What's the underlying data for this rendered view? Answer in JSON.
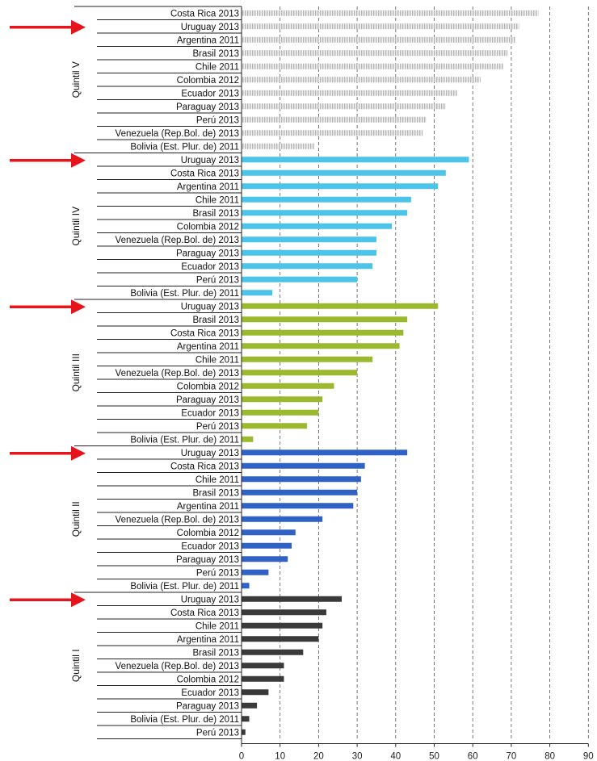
{
  "chart_data": {
    "type": "bar",
    "orientation": "horizontal",
    "xlim": [
      0,
      90
    ],
    "xticks": [
      "0",
      "10",
      "20",
      "30",
      "40",
      "50",
      "60",
      "70",
      "80",
      "90"
    ],
    "grid": "vertical dashed",
    "colors": {
      "Quintil V": "#c8c8c8",
      "Quintil IV": "#4cc3e8",
      "Quintil III": "#9ab92e",
      "Quintil II": "#2f62c4",
      "Quintil I": "#3a3a3a",
      "arrow": "#e8141b"
    },
    "groups": [
      {
        "name": "Quintil V",
        "categories": [
          "Costa Rica 2013",
          "Uruguay 2013",
          "Argentina 2011",
          "Brasil 2013",
          "Chile 2011",
          "Colombia 2012",
          "Ecuador 2013",
          "Paraguay 2013",
          "Perú 2013",
          "Venezuela (Rep.Bol. de) 2013",
          "Bolivia (Est. Plur. de) 2011"
        ],
        "values": [
          77,
          72,
          71,
          69,
          68,
          62,
          56,
          53,
          48,
          47,
          19
        ]
      },
      {
        "name": "Quintil IV",
        "categories": [
          "Uruguay 2013",
          "Costa Rica 2013",
          "Argentina 2011",
          "Chile 2011",
          "Brasil 2013",
          "Colombia 2012",
          "Venezuela (Rep.Bol. de) 2013",
          "Paraguay 2013",
          "Ecuador 2013",
          "Perú 2013",
          "Bolivia (Est. Plur. de) 2011"
        ],
        "values": [
          59,
          53,
          51,
          44,
          43,
          39,
          35,
          35,
          34,
          30,
          8
        ]
      },
      {
        "name": "Quintil III",
        "categories": [
          "Uruguay 2013",
          "Brasil 2013",
          "Costa Rica 2013",
          "Argentina 2011",
          "Chile 2011",
          "Venezuela (Rep.Bol. de) 2013",
          "Colombia 2012",
          "Paraguay 2013",
          "Ecuador 2013",
          "Perú 2013",
          "Bolivia (Est. Plur. de) 2011"
        ],
        "values": [
          51,
          43,
          42,
          41,
          34,
          30,
          24,
          21,
          20,
          17,
          3
        ]
      },
      {
        "name": "Quintil II",
        "categories": [
          "Uruguay 2013",
          "Costa Rica 2013",
          "Chile 2011",
          "Brasil 2013",
          "Argentina 2011",
          "Venezuela (Rep.Bol. de) 2013",
          "Colombia 2012",
          "Ecuador 2013",
          "Paraguay 2013",
          "Perú 2013",
          "Bolivia (Est. Plur. de) 2011"
        ],
        "values": [
          43,
          32,
          31,
          30,
          29,
          21,
          14,
          13,
          12,
          7,
          2
        ]
      },
      {
        "name": "Quintil I",
        "categories": [
          "Uruguay 2013",
          "Costa Rica 2013",
          "Chile 2011",
          "Argentina 2011",
          "Brasil 2013",
          "Venezuela (Rep.Bol. de) 2013",
          "Colombia 2012",
          "Ecuador 2013",
          "Paraguay 2013",
          "Bolivia (Est. Plur. de) 2011",
          "Perú 2013"
        ],
        "values": [
          26,
          22,
          21,
          20,
          16,
          11,
          11,
          7,
          4,
          2,
          1
        ]
      }
    ],
    "annotations": [
      "red arrow pointing at Uruguay 2013 in each quintile"
    ]
  }
}
